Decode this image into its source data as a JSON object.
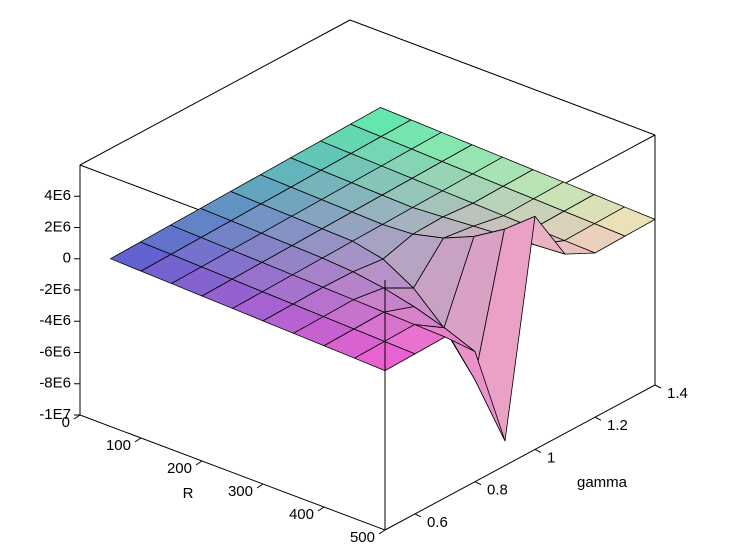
{
  "chart_data": {
    "type": "surface3d",
    "x_label": "R",
    "y_label": "gamma",
    "x": [
      50,
      100,
      150,
      200,
      250,
      300,
      350,
      400,
      450,
      500
    ],
    "y": [
      0.5,
      0.6,
      0.7,
      0.8,
      0.9,
      1.0,
      1.1,
      1.2,
      1.3,
      1.4
    ],
    "z": [
      [
        740000,
        780000,
        830000,
        870000,
        920000,
        960000,
        1010000,
        1050000,
        1100000,
        1140000
      ],
      [
        680000,
        720000,
        770000,
        810000,
        860000,
        900000,
        950000,
        990000,
        1040000,
        1080000
      ],
      [
        620000,
        660000,
        710000,
        750000,
        800000,
        840000,
        890000,
        930000,
        980000,
        1020000
      ],
      [
        560000,
        600000,
        650000,
        690000,
        740000,
        780000,
        830000,
        870000,
        920000,
        960000
      ],
      [
        500000,
        540000,
        590000,
        630000,
        680000,
        720000,
        770000,
        810000,
        860000,
        900000
      ],
      [
        440000,
        480000,
        530000,
        490000,
        270000,
        840000,
        910000,
        750000,
        800000,
        840000
      ],
      [
        380000,
        420000,
        470000,
        190000,
        -850000,
        1320000,
        1050000,
        690000,
        740000,
        780000
      ],
      [
        320000,
        360000,
        410000,
        -270000,
        -2670000,
        2160000,
        1190000,
        630000,
        680000,
        720000
      ],
      [
        260000,
        300000,
        350000,
        -890000,
        -5190000,
        3360000,
        1330000,
        570000,
        620000,
        660000
      ],
      [
        200000,
        240000,
        290000,
        -1670000,
        -8420000,
        4920000,
        1470000,
        510000,
        560000,
        600000
      ]
    ],
    "xlim": [
      0,
      500
    ],
    "ylim": [
      0.5,
      1.4
    ],
    "zlim": [
      -10000000,
      6000000
    ],
    "xticks": [
      0,
      100,
      200,
      300,
      400,
      500
    ],
    "yticks": [
      0.6,
      0.8,
      1,
      1.2,
      1.4
    ],
    "zticks": [
      {
        "value": 4000000,
        "label": "4E6"
      },
      {
        "value": 2000000,
        "label": "2E6"
      },
      0,
      {
        "value": -2000000,
        "label": "-2E6"
      },
      {
        "value": -4000000,
        "label": "-4E6"
      },
      {
        "value": -6000000,
        "label": "-6E6"
      },
      {
        "value": -8000000,
        "label": "-8E6"
      },
      {
        "value": -10000000,
        "label": "-1E7"
      }
    ],
    "corner_colors": [
      "#5a5ad2",
      "#5af0aa",
      "#f05ad2",
      "#f4e8b8"
    ],
    "mesh_color": "#000000"
  }
}
